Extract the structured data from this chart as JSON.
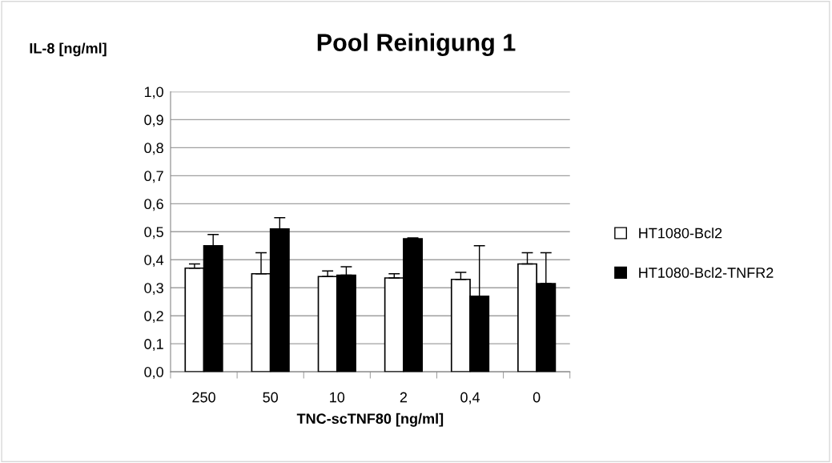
{
  "chart_data": {
    "type": "bar",
    "title": "Pool Reinigung 1",
    "xlabel": "TNC-scTNF80 [ng/ml]",
    "ylabel": "IL-8 [ng/ml]",
    "categories": [
      "250",
      "50",
      "10",
      "2",
      "0,4",
      "0"
    ],
    "series": [
      {
        "name": "HT1080-Bcl2",
        "color": "#ffffff",
        "values": [
          0.37,
          0.35,
          0.34,
          0.335,
          0.33,
          0.385
        ],
        "errors": [
          [
            0.37,
            0.385
          ],
          [
            0.35,
            0.425
          ],
          [
            0.34,
            0.36
          ],
          [
            0.335,
            0.35
          ],
          [
            0.33,
            0.355
          ],
          [
            0.385,
            0.425
          ]
        ]
      },
      {
        "name": "HT1080-Bcl2-TNFR2",
        "color": "#000000",
        "values": [
          0.45,
          0.51,
          0.345,
          0.475,
          0.27,
          0.315
        ],
        "errors": [
          [
            0.45,
            0.49
          ],
          [
            0.51,
            0.55
          ],
          [
            0.345,
            0.375
          ],
          [
            0.475,
            0.478
          ],
          [
            0.27,
            0.45
          ],
          [
            0.315,
            0.425
          ]
        ]
      }
    ],
    "ylim": [
      0,
      1
    ],
    "yticks": [
      {
        "value": 0,
        "label": "0,0"
      },
      {
        "value": 0.1,
        "label": "0,1"
      },
      {
        "value": 0.2,
        "label": "0,2"
      },
      {
        "value": 0.3,
        "label": "0,3"
      },
      {
        "value": 0.4,
        "label": "0,4"
      },
      {
        "value": 0.5,
        "label": "0,5"
      },
      {
        "value": 0.6,
        "label": "0,6"
      },
      {
        "value": 0.7,
        "label": "0,7"
      },
      {
        "value": 0.8,
        "label": "0,8"
      },
      {
        "value": 0.9,
        "label": "0,9"
      },
      {
        "value": 1,
        "label": "1,0"
      }
    ],
    "grid": "y",
    "legend": "right"
  }
}
